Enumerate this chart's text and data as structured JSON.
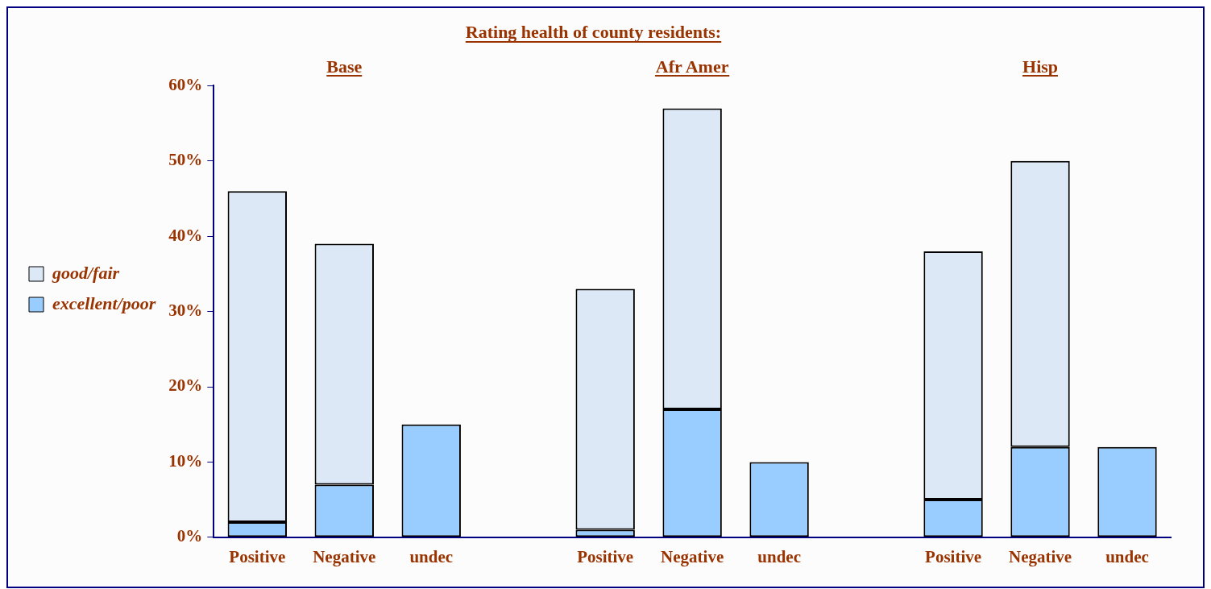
{
  "chart_data": {
    "type": "bar",
    "title": "Rating health of county residents:",
    "annotations": [
      "Base",
      "Afr Amer",
      "Hisp"
    ],
    "categories": [
      "Positive",
      "Negative",
      "undec",
      null,
      "Positive",
      "Negative",
      "undec",
      null,
      "Positive",
      "Negative",
      "undec"
    ],
    "stacked": true,
    "series": [
      {
        "name": "excellent/poor",
        "color": "#99ccff",
        "values": [
          2,
          7,
          15,
          null,
          1,
          17,
          10,
          null,
          5,
          12,
          12
        ]
      },
      {
        "name": "good/fair",
        "color": "#dce8f5",
        "values": [
          44,
          32,
          null,
          null,
          32,
          40,
          null,
          null,
          33,
          38,
          null
        ]
      }
    ],
    "ylim": [
      0,
      60
    ],
    "yticks": [
      {
        "value": 0,
        "label": "0%"
      },
      {
        "value": 10,
        "label": "10%"
      },
      {
        "value": 20,
        "label": "20%"
      },
      {
        "value": 30,
        "label": "30%"
      },
      {
        "value": 40,
        "label": "40%"
      },
      {
        "value": 50,
        "label": "50%"
      },
      {
        "value": 60,
        "label": "60%"
      }
    ],
    "grid": false,
    "legend": "left"
  }
}
